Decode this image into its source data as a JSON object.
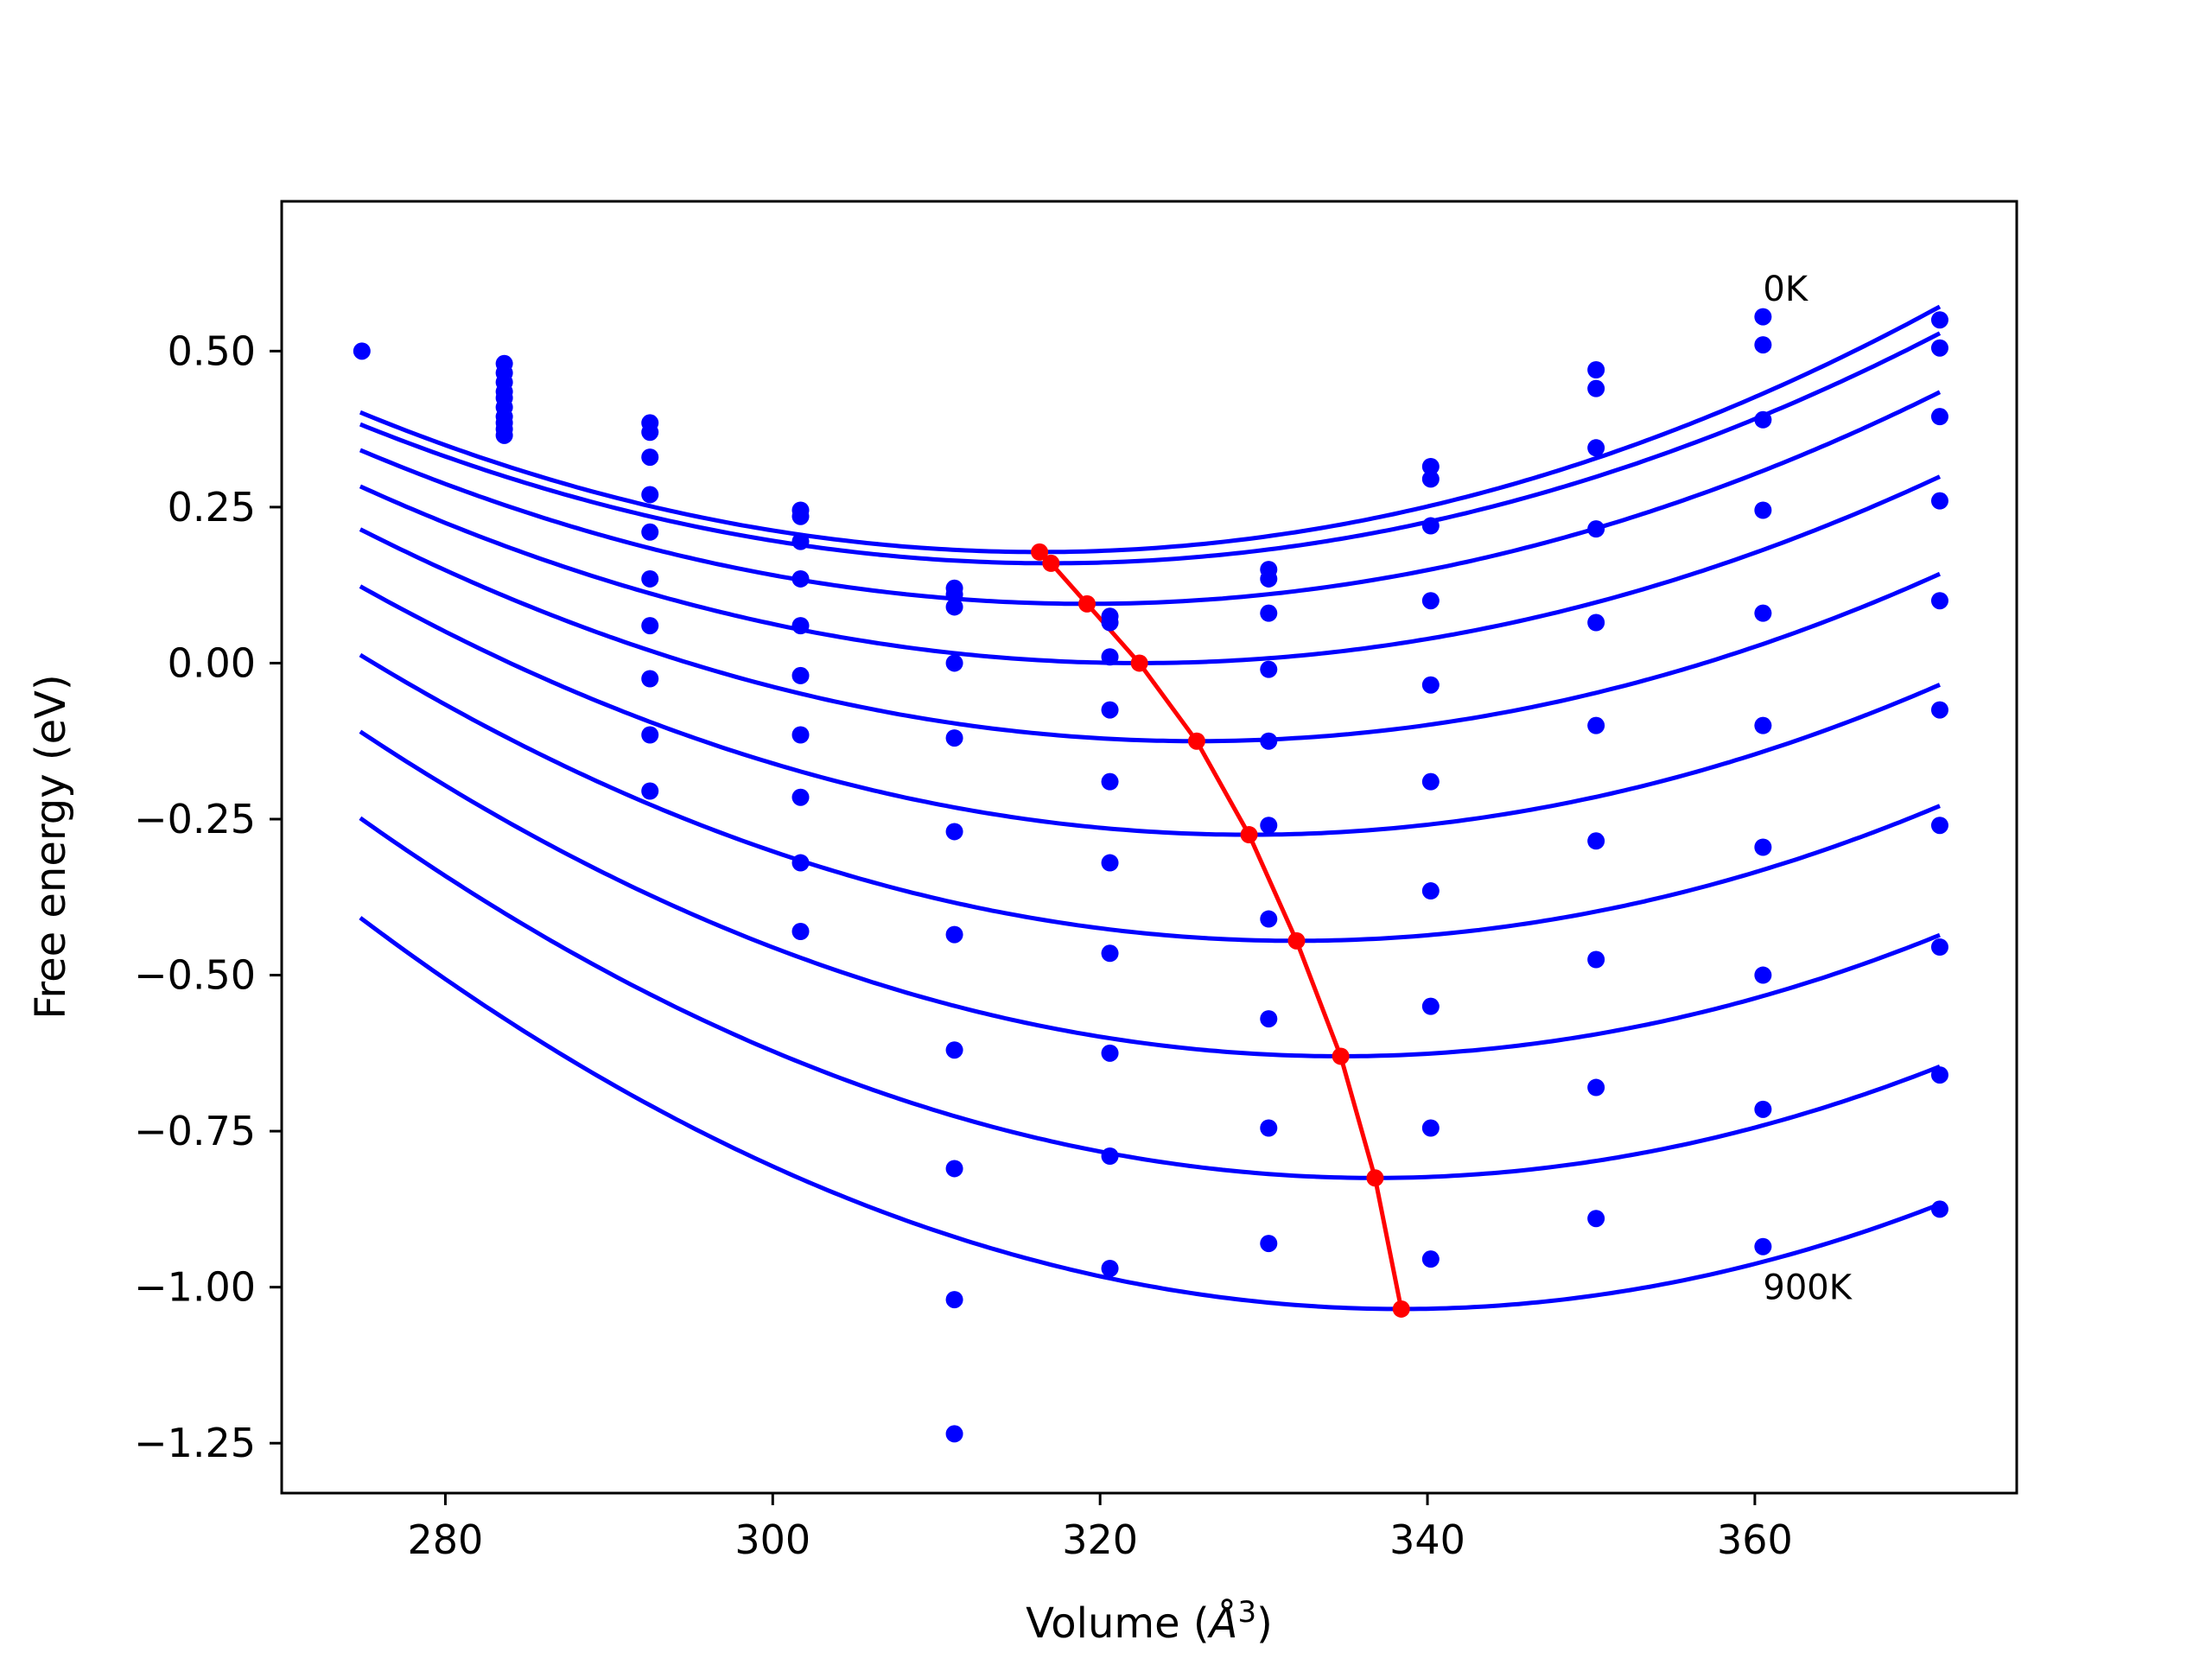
{
  "chart_data": {
    "type": "line",
    "title": "",
    "xlabel_prefix": "Volume (",
    "xlabel_symbol": "Å",
    "xlabel_exponent": "3",
    "xlabel_suffix": ")",
    "ylabel": "Free energy (eV)",
    "xlim": [
      270,
      376
    ],
    "ylim": [
      -1.33,
      0.74
    ],
    "xticks": [
      280,
      300,
      320,
      340,
      360
    ],
    "xtick_labels": [
      "280",
      "300",
      "320",
      "340",
      "360"
    ],
    "yticks": [
      0.5,
      0.25,
      0.0,
      -0.25,
      -0.5,
      -0.75,
      -1.0,
      -1.25
    ],
    "ytick_labels": [
      "0.50",
      "0.25",
      "0.00",
      "−0.25",
      "−0.50",
      "−0.75",
      "−1.00",
      "−1.25"
    ],
    "annotations": [
      {
        "text": "0K",
        "x": 360.5,
        "y": 0.6
      },
      {
        "text": "900K",
        "x": 360.5,
        "y": -1.0
      }
    ],
    "curve_x_range": [
      274.8,
      371.3
    ],
    "curve_color": "#0000ff",
    "point_color": "#0000ff",
    "min_line_color": "#ff0000",
    "series": [
      {
        "vmin": 316.3,
        "fmin": 0.178,
        "curvature": 0.00013,
        "points": [
          [
            274.9,
            0.5
          ],
          [
            283.6,
            0.48
          ],
          [
            292.5,
            0.385
          ],
          [
            301.7,
            0.245
          ],
          [
            311.1,
            0.12
          ],
          [
            320.6,
            0.075
          ],
          [
            330.3,
            0.15
          ],
          [
            340.2,
            0.315
          ],
          [
            350.3,
            0.47
          ],
          [
            360.5,
            0.555
          ],
          [
            371.3,
            0.55
          ]
        ]
      },
      {
        "vmin": 317.0,
        "fmin": 0.16,
        "curvature": 0.000125,
        "points": [
          [
            283.6,
            0.465
          ],
          [
            292.5,
            0.37
          ],
          [
            301.7,
            0.235
          ],
          [
            311.1,
            0.11
          ],
          [
            320.6,
            0.065
          ],
          [
            330.3,
            0.135
          ],
          [
            340.2,
            0.295
          ],
          [
            350.3,
            0.44
          ],
          [
            360.5,
            0.51
          ],
          [
            371.3,
            0.505
          ]
        ]
      },
      {
        "vmin": 319.2,
        "fmin": 0.095,
        "curvature": 0.000125,
        "points": [
          [
            283.6,
            0.45
          ],
          [
            292.5,
            0.33
          ],
          [
            301.7,
            0.195
          ],
          [
            311.1,
            0.09
          ],
          [
            320.6,
            0.01
          ],
          [
            330.3,
            0.08
          ],
          [
            340.2,
            0.22
          ],
          [
            350.3,
            0.345
          ],
          [
            360.5,
            0.39
          ],
          [
            371.3,
            0.395
          ]
        ]
      },
      {
        "vmin": 322.4,
        "fmin": 0.0,
        "curvature": 0.000125,
        "points": [
          [
            283.6,
            0.435
          ],
          [
            292.5,
            0.27
          ],
          [
            301.7,
            0.135
          ],
          [
            311.1,
            0.0
          ],
          [
            320.6,
            -0.075
          ],
          [
            330.3,
            -0.01
          ],
          [
            340.2,
            0.1
          ],
          [
            350.3,
            0.215
          ],
          [
            360.5,
            0.245
          ],
          [
            371.3,
            0.26
          ]
        ]
      },
      {
        "vmin": 325.9,
        "fmin": -0.125,
        "curvature": 0.00013,
        "points": [
          [
            283.6,
            0.425
          ],
          [
            292.5,
            0.21
          ],
          [
            301.7,
            0.06
          ],
          [
            311.1,
            -0.12
          ],
          [
            320.6,
            -0.19
          ],
          [
            330.3,
            -0.125
          ],
          [
            340.2,
            -0.035
          ],
          [
            350.3,
            0.065
          ],
          [
            360.5,
            0.08
          ],
          [
            371.3,
            0.1
          ]
        ]
      },
      {
        "vmin": 329.1,
        "fmin": -0.275,
        "curvature": 0.000135,
        "points": [
          [
            283.6,
            0.41
          ],
          [
            292.5,
            0.135
          ],
          [
            301.7,
            -0.02
          ],
          [
            311.1,
            -0.27
          ],
          [
            320.6,
            -0.32
          ],
          [
            330.3,
            -0.26
          ],
          [
            340.2,
            -0.19
          ],
          [
            350.3,
            -0.1
          ],
          [
            360.5,
            -0.1
          ],
          [
            371.3,
            -0.075
          ]
        ]
      },
      {
        "vmin": 332.0,
        "fmin": -0.445,
        "curvature": 0.00014,
        "points": [
          [
            283.6,
            0.395
          ],
          [
            292.5,
            0.06
          ],
          [
            301.7,
            -0.115
          ],
          [
            311.1,
            -0.435
          ],
          [
            320.6,
            -0.465
          ],
          [
            330.3,
            -0.41
          ],
          [
            340.2,
            -0.365
          ],
          [
            350.3,
            -0.285
          ],
          [
            360.5,
            -0.295
          ],
          [
            371.3,
            -0.26
          ]
        ]
      },
      {
        "vmin": 334.7,
        "fmin": -0.63,
        "curvature": 0.000145,
        "points": [
          [
            283.6,
            0.385
          ],
          [
            292.5,
            -0.025
          ],
          [
            301.7,
            -0.215
          ],
          [
            311.1,
            -0.62
          ],
          [
            320.6,
            -0.625
          ],
          [
            330.3,
            -0.57
          ],
          [
            340.2,
            -0.55
          ],
          [
            350.3,
            -0.475
          ],
          [
            360.5,
            -0.5
          ],
          [
            371.3,
            -0.455
          ]
        ]
      },
      {
        "vmin": 336.8,
        "fmin": -0.825,
        "curvature": 0.00015,
        "points": [
          [
            283.6,
            0.375
          ],
          [
            292.5,
            -0.115
          ],
          [
            301.7,
            -0.32
          ],
          [
            311.1,
            -0.81
          ],
          [
            320.6,
            -0.79
          ],
          [
            330.3,
            -0.745
          ],
          [
            340.2,
            -0.745
          ],
          [
            350.3,
            -0.68
          ],
          [
            360.5,
            -0.715
          ],
          [
            371.3,
            -0.66
          ]
        ]
      },
      {
        "vmin": 338.4,
        "fmin": -1.035,
        "curvature": 0.000155,
        "points": [
          [
            283.6,
            0.365
          ],
          [
            292.5,
            -0.205
          ],
          [
            301.7,
            -0.43
          ],
          [
            311.1,
            -1.02
          ],
          [
            311.1,
            -1.235
          ],
          [
            320.6,
            -0.97
          ],
          [
            330.3,
            -0.93
          ],
          [
            340.2,
            -0.955
          ],
          [
            350.3,
            -0.89
          ],
          [
            360.5,
            -0.935
          ],
          [
            371.3,
            -0.875
          ]
        ]
      }
    ]
  }
}
